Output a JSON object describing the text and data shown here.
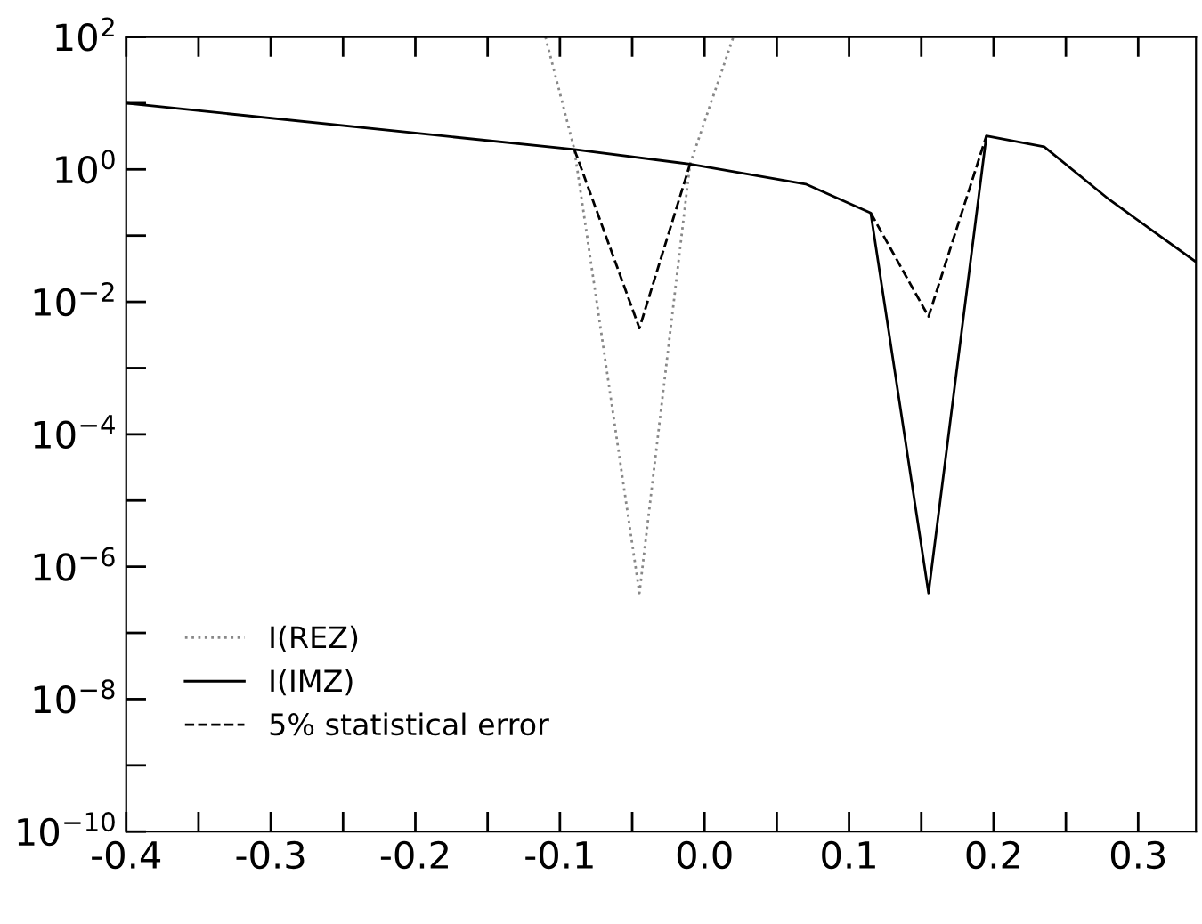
{
  "chart_data": {
    "type": "line",
    "log": "y",
    "legend": "bottom left",
    "grid": false,
    "xlim": [
      -0.4,
      0.34
    ],
    "ylim": [
      1e-10,
      100
    ],
    "xticks": [
      -0.4,
      {
        "value": -0.35,
        "label": null
      },
      -0.3,
      {
        "value": -0.25,
        "label": null
      },
      -0.2,
      {
        "value": -0.15,
        "label": null
      },
      -0.1,
      {
        "value": -0.05,
        "label": null
      },
      {
        "value": 0,
        "label": "0.0"
      },
      {
        "value": 0.05,
        "label": null
      },
      0.1,
      {
        "value": 0.15,
        "label": null
      },
      0.2,
      {
        "value": 0.25,
        "label": null
      },
      0.3
    ],
    "yticks": [
      {
        "value": 1e-10,
        "label": "10$^{−10}$"
      },
      {
        "value": 1e-09,
        "label": null
      },
      {
        "value": 1e-08,
        "label": "10$^{−8}$"
      },
      {
        "value": 1e-07,
        "label": null
      },
      {
        "value": 1e-06,
        "label": "10$^{−6}$"
      },
      {
        "value": 1e-05,
        "label": null
      },
      {
        "value": 0.0001,
        "label": "10$^{−4}$"
      },
      {
        "value": 0.001,
        "label": null
      },
      {
        "value": 0.01,
        "label": "10$^{−2}$"
      },
      {
        "value": 0.1,
        "label": null
      },
      {
        "value": 1,
        "label": "10$^{0}$"
      },
      {
        "value": 10,
        "label": null
      },
      {
        "value": 100,
        "label": "10$^{2}$"
      }
    ],
    "series": [
      {
        "name": "I(REZ)",
        "color": "#888888",
        "line_style": "dotted",
        "x": [
          -0.11,
          -0.09,
          -0.045,
          -0.01,
          0.02
        ],
        "values": [
          100,
          2,
          4e-07,
          1.2,
          100
        ]
      },
      {
        "name": "I(IMZ)",
        "color": "#000000",
        "line_style": "solid",
        "x": [
          -0.4,
          -0.09,
          -0.01,
          0.07,
          0.115,
          0.155,
          0.195,
          0.235,
          0.28,
          0.34
        ],
        "values": [
          10,
          2,
          1.2,
          0.6,
          0.22,
          4e-07,
          3.2,
          2.2,
          0.35,
          0.04
        ]
      },
      {
        "name": "5% statistical error",
        "color": "#000000",
        "line_style": "dashed",
        "x": [
          -0.09,
          -0.045,
          -0.01,
          0.05,
          0.115,
          0.155,
          0.195
        ],
        "values": [
          2,
          0.004,
          1.2,
          null,
          0.22,
          0.006,
          3.2
        ]
      }
    ]
  }
}
